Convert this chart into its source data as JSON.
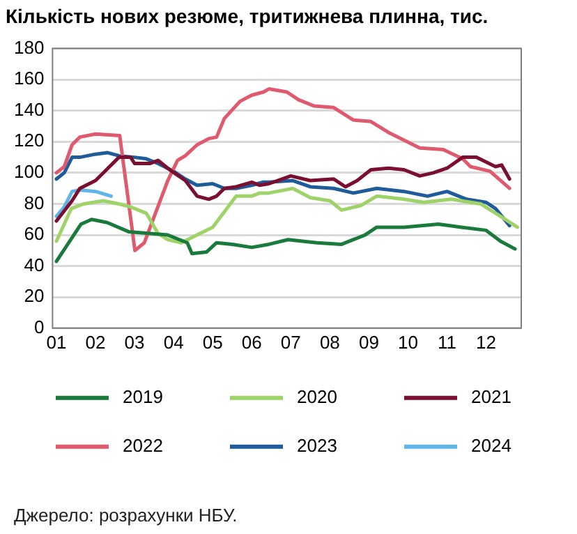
{
  "chart_data": {
    "type": "line",
    "title": "Кількість нових резюме, тритижнева плинна, тис.",
    "annotations": [
      "Джерело: розрахунки НБУ."
    ],
    "xlim": [
      0.9,
      12.9
    ],
    "xticks": [
      {
        "value": 1,
        "label": "01"
      },
      {
        "value": 2,
        "label": "02"
      },
      {
        "value": 3,
        "label": "03"
      },
      {
        "value": 4,
        "label": "04"
      },
      {
        "value": 5,
        "label": "05"
      },
      {
        "value": 6,
        "label": "06"
      },
      {
        "value": 7,
        "label": "07"
      },
      {
        "value": 8,
        "label": "08"
      },
      {
        "value": 9,
        "label": "09"
      },
      {
        "value": 10,
        "label": "10"
      },
      {
        "value": 11,
        "label": "11"
      },
      {
        "value": 12,
        "label": "12"
      }
    ],
    "ylim": [
      0,
      180
    ],
    "yticks": [
      0,
      20,
      40,
      60,
      80,
      100,
      120,
      140,
      160,
      180
    ],
    "grid": "y",
    "legend": "bottom",
    "marker": "none",
    "line_style": "solid",
    "series": [
      {
        "name": "2019",
        "color": "#1a7a3c",
        "x": [
          1,
          1.63,
          1.9,
          2.3,
          2.86,
          3.85,
          4.35,
          4.47,
          4.84,
          5.1,
          5.5,
          6.0,
          6.44,
          6.93,
          7.67,
          8.3,
          8.9,
          9.2,
          9.9,
          10.78,
          11.37,
          12.0,
          12.37,
          12.74
        ],
        "values": [
          43,
          67,
          70,
          68,
          62,
          60,
          55,
          48,
          49,
          55,
          54,
          52,
          54,
          57,
          55,
          54,
          60,
          65,
          65,
          67,
          65,
          63,
          56,
          51
        ]
      },
      {
        "name": "2020",
        "color": "#9fd36a",
        "x": [
          1,
          1.38,
          1.7,
          2.2,
          2.6,
          2.9,
          3.3,
          3.6,
          3.85,
          4.2,
          4.6,
          5.0,
          5.3,
          5.6,
          6.0,
          6.2,
          6.44,
          7.05,
          7.5,
          8.0,
          8.3,
          8.8,
          9.2,
          9.9,
          10.4,
          11.1,
          11.86,
          12.37,
          12.8
        ],
        "values": [
          56,
          77,
          80,
          82,
          80,
          78,
          74,
          61,
          57,
          55,
          60,
          65,
          75,
          85,
          85,
          87,
          87,
          90,
          84,
          82,
          76,
          79,
          85,
          83,
          81,
          83,
          80,
          72,
          65
        ]
      },
      {
        "name": "2021",
        "color": "#7b0f30",
        "x": [
          1,
          1.4,
          1.6,
          2.0,
          2.2,
          2.6,
          2.9,
          3.0,
          3.4,
          3.6,
          3.9,
          4.3,
          4.6,
          4.9,
          5.1,
          5.3,
          5.6,
          6.0,
          6.2,
          6.44,
          7.0,
          7.5,
          8.1,
          8.4,
          8.7,
          9.05,
          9.5,
          9.9,
          10.3,
          10.65,
          11.0,
          11.4,
          11.75,
          12.24,
          12.4,
          12.6
        ],
        "values": [
          69,
          82,
          90,
          95,
          100,
          110,
          110,
          106,
          106,
          108,
          102,
          95,
          85,
          83,
          85,
          90,
          91,
          94,
          92,
          93,
          98,
          95,
          96,
          91,
          95,
          102,
          103,
          102,
          98,
          100,
          103,
          110,
          110,
          104,
          105,
          96
        ]
      },
      {
        "name": "2022",
        "color": "#e05a6e",
        "x": [
          1,
          1.2,
          1.4,
          1.6,
          2.0,
          2.62,
          3.01,
          3.25,
          3.55,
          3.85,
          4.1,
          4.3,
          4.6,
          4.9,
          5.1,
          5.3,
          5.7,
          6.0,
          6.3,
          6.44,
          6.9,
          7.2,
          7.6,
          8.1,
          8.6,
          9.05,
          9.5,
          10.3,
          10.9,
          11.4,
          11.6,
          12.1,
          12.6
        ],
        "values": [
          100,
          104,
          118,
          123,
          125,
          124,
          50,
          55,
          75,
          95,
          108,
          111,
          118,
          122,
          123,
          135,
          146,
          150,
          152,
          154,
          152,
          147,
          143,
          142,
          134,
          133,
          126,
          116,
          115,
          109,
          104,
          101,
          90
        ]
      },
      {
        "name": "2023",
        "color": "#1f5c99",
        "x": [
          1,
          1.2,
          1.4,
          1.6,
          2.0,
          2.3,
          2.6,
          3.0,
          3.3,
          3.6,
          4.0,
          4.3,
          4.6,
          5.0,
          5.3,
          5.6,
          6.0,
          6.3,
          6.44,
          7.05,
          7.5,
          8.1,
          8.6,
          9.2,
          9.9,
          10.5,
          11.0,
          11.5,
          12.0,
          12.24,
          12.6
        ],
        "values": [
          96,
          100,
          110,
          110,
          112,
          113,
          111,
          110,
          109,
          106,
          101,
          96,
          92,
          93,
          90,
          90,
          92,
          94,
          94,
          95,
          91,
          90,
          87,
          90,
          88,
          85,
          88,
          83,
          81,
          77,
          66
        ]
      },
      {
        "name": "2024",
        "color": "#5fb4e8",
        "x": [
          1,
          1.2,
          1.4,
          1.6,
          2.0,
          2.4
        ],
        "values": [
          72,
          78,
          88,
          89,
          88,
          85
        ]
      }
    ]
  }
}
